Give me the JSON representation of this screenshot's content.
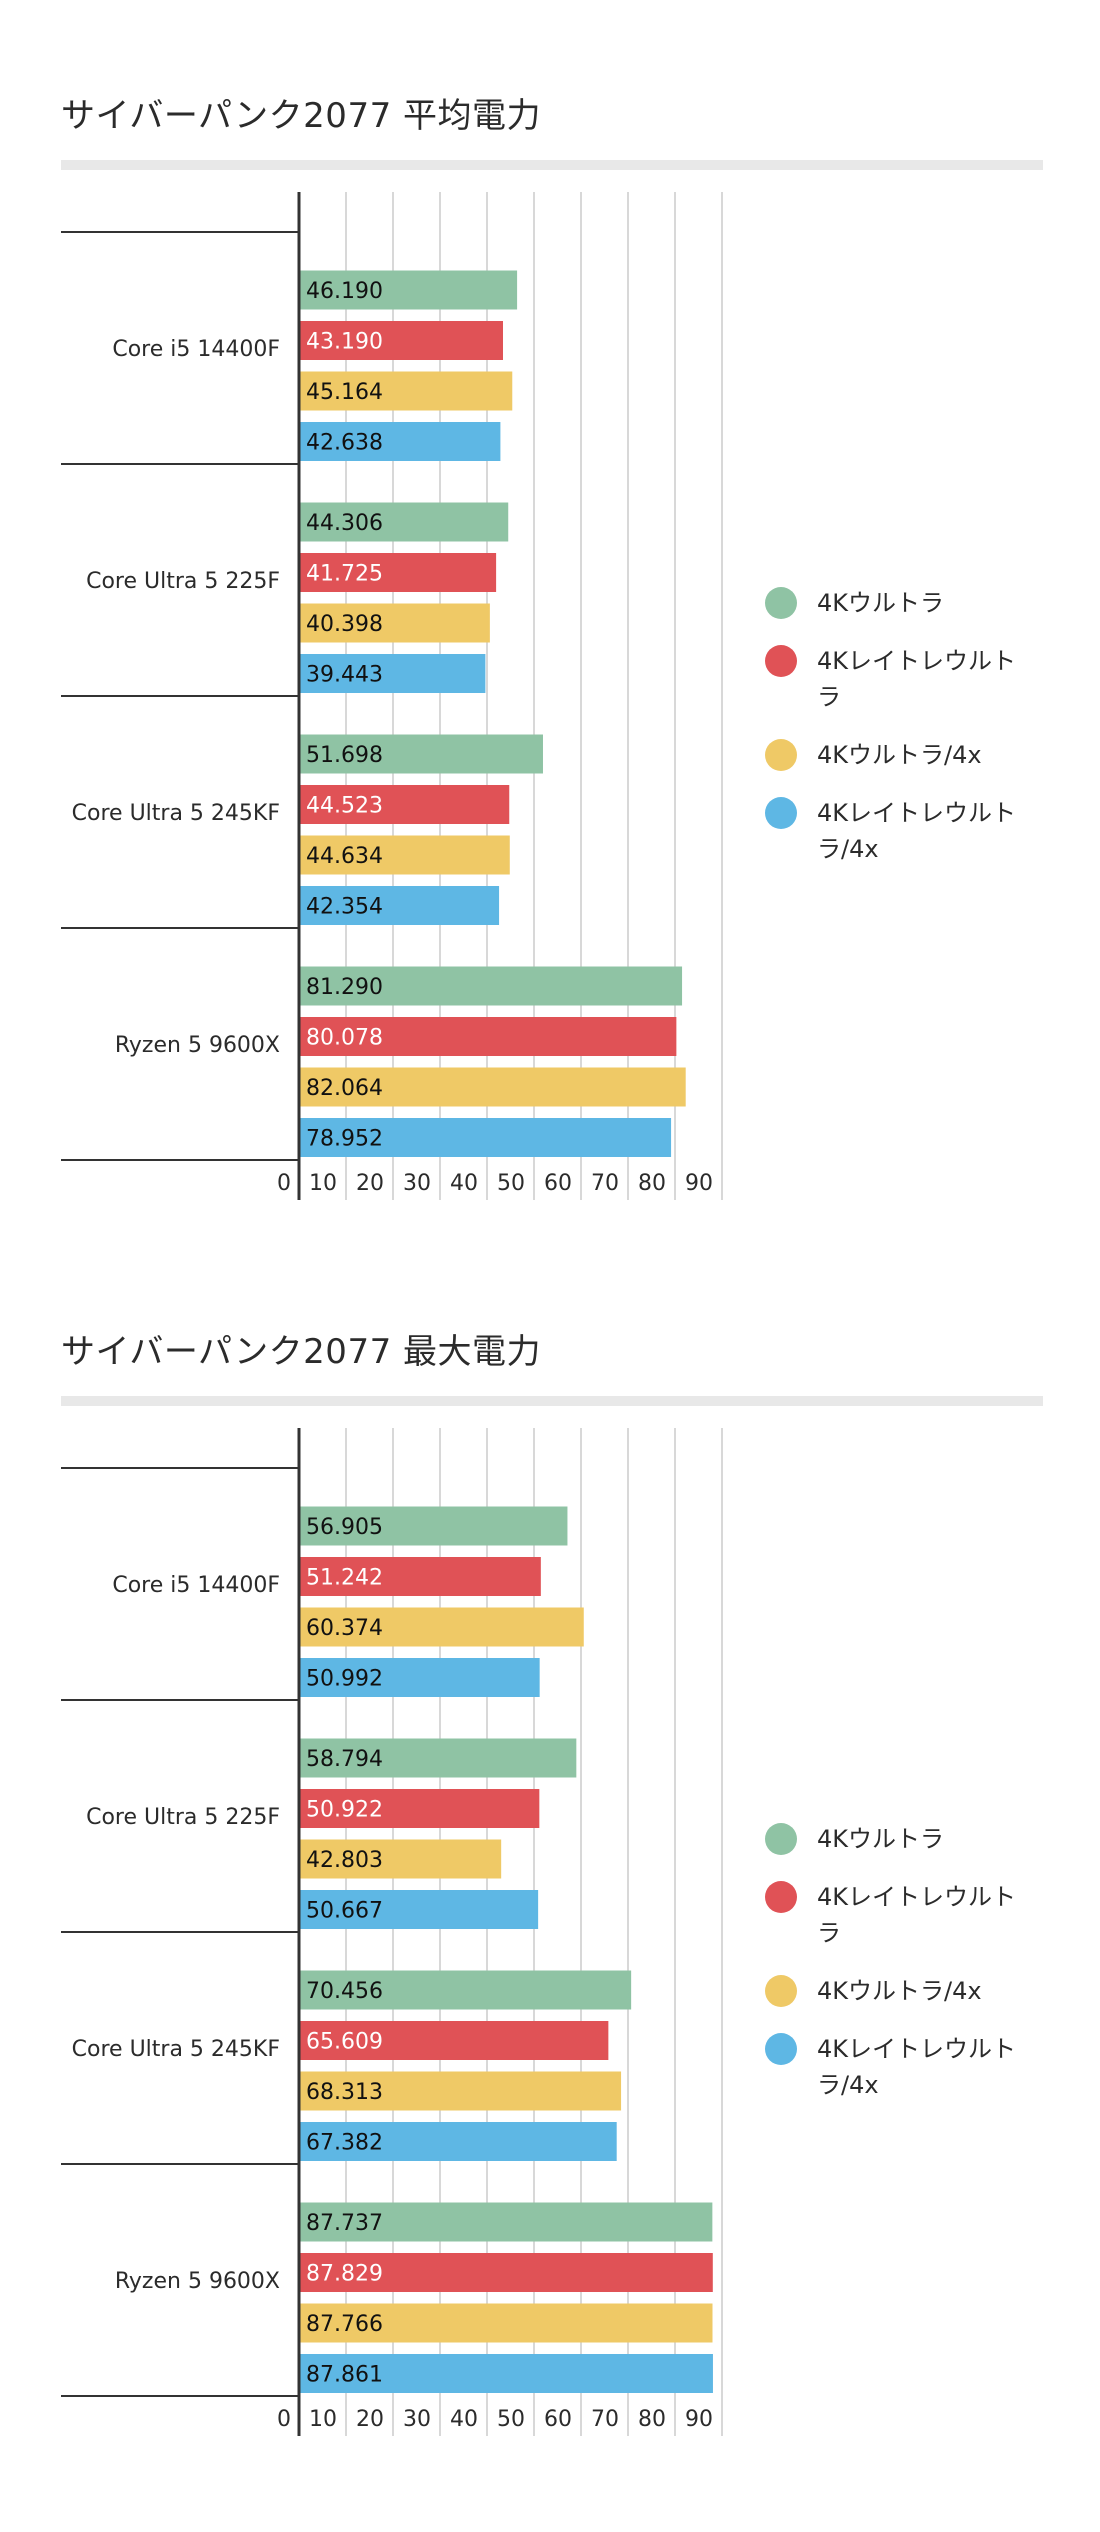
{
  "chart_data": [
    {
      "type": "bar",
      "orientation": "horizontal",
      "title": "サイバーパンク2077 平均電力",
      "categories": [
        "Core i5 14400F",
        "Core Ultra 5 225F",
        "Core Ultra 5 245KF",
        "Ryzen 5 9600X"
      ],
      "series": [
        {
          "name": "4Kウルトラ",
          "color": "#8fc3a4",
          "values": [
            46.19,
            44.306,
            51.698,
            81.29
          ],
          "labels": [
            "46.190",
            "44.306",
            "51.698",
            "81.290"
          ]
        },
        {
          "name": "4Kレイトレウルトラ",
          "color": "#e05256",
          "values": [
            43.19,
            41.725,
            44.523,
            80.078
          ],
          "labels": [
            "43.190",
            "41.725",
            "44.523",
            "80.078"
          ]
        },
        {
          "name": "4Kウルトラ/4x",
          "color": "#efc966",
          "values": [
            45.164,
            40.398,
            44.634,
            82.064
          ],
          "labels": [
            "45.164",
            "40.398",
            "44.634",
            "82.064"
          ]
        },
        {
          "name": "4Kレイトレウルトラ/4x",
          "color": "#5eb7e4",
          "values": [
            42.638,
            39.443,
            42.354,
            78.952
          ],
          "labels": [
            "42.638",
            "39.443",
            "42.354",
            "78.952"
          ]
        }
      ],
      "label_colors": [
        "#111111",
        "#ffffff",
        "#111111",
        "#111111"
      ],
      "xticks": [
        "0",
        "10",
        "20",
        "30",
        "40",
        "50",
        "60",
        "70",
        "80",
        "90"
      ],
      "xlim": [
        0,
        90
      ],
      "grid": true,
      "legend_position": "right"
    },
    {
      "type": "bar",
      "orientation": "horizontal",
      "title": "サイバーパンク2077 最大電力",
      "categories": [
        "Core i5 14400F",
        "Core Ultra 5 225F",
        "Core Ultra 5 245KF",
        "Ryzen 5 9600X"
      ],
      "series": [
        {
          "name": "4Kウルトラ",
          "color": "#8fc3a4",
          "values": [
            56.905,
            58.794,
            70.456,
            87.737
          ],
          "labels": [
            "56.905",
            "58.794",
            "70.456",
            "87.737"
          ]
        },
        {
          "name": "4Kレイトレウルトラ",
          "color": "#e05256",
          "values": [
            51.242,
            50.922,
            65.609,
            87.829
          ],
          "labels": [
            "51.242",
            "50.922",
            "65.609",
            "87.829"
          ]
        },
        {
          "name": "4Kウルトラ/4x",
          "color": "#efc966",
          "values": [
            60.374,
            42.803,
            68.313,
            87.766
          ],
          "labels": [
            "60.374",
            "42.803",
            "68.313",
            "87.766"
          ]
        },
        {
          "name": "4Kレイトレウルトラ/4x",
          "color": "#5eb7e4",
          "values": [
            50.992,
            50.667,
            67.382,
            87.861
          ],
          "labels": [
            "50.992",
            "50.667",
            "67.382",
            "87.861"
          ]
        }
      ],
      "label_colors": [
        "#111111",
        "#ffffff",
        "#111111",
        "#111111"
      ],
      "xticks": [
        "0",
        "10",
        "20",
        "30",
        "40",
        "50",
        "60",
        "70",
        "80",
        "90"
      ],
      "xlim": [
        0,
        90
      ],
      "grid": true,
      "legend_position": "right"
    }
  ]
}
